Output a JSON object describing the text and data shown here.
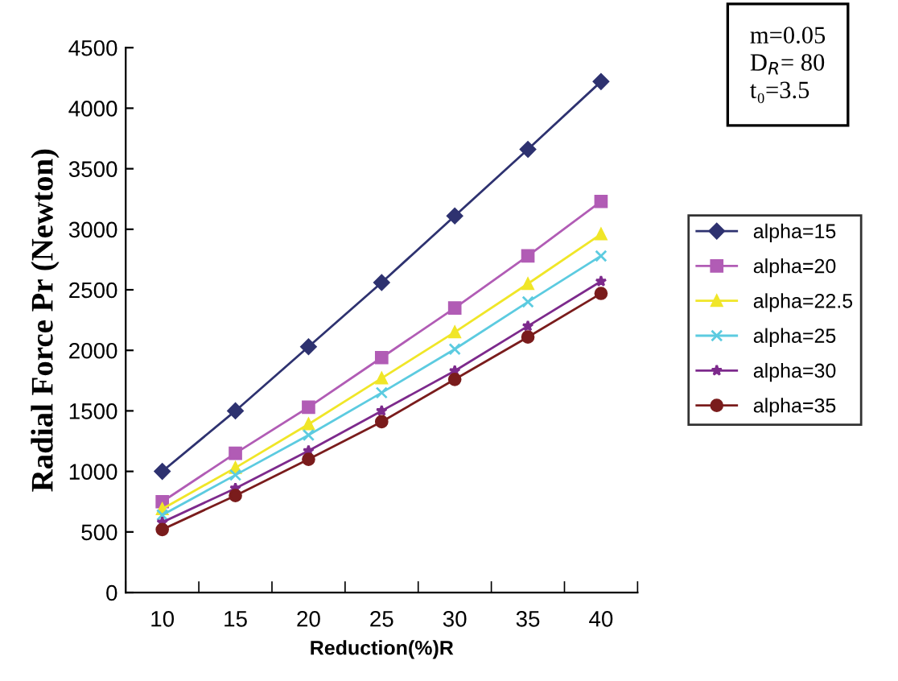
{
  "chart_data": {
    "type": "line",
    "xlabel": "Reduction(%)R",
    "ylabel": "Radial Force Pr (Newton)",
    "categories": [
      "10",
      "15",
      "20",
      "25",
      "30",
      "35",
      "40"
    ],
    "ylim": [
      0,
      4500
    ],
    "yticks": [
      0,
      500,
      1000,
      1500,
      2000,
      2500,
      3000,
      3500,
      4000,
      4500
    ],
    "grid": false,
    "legend": "right",
    "line_style": "solid",
    "annotations": [
      "m=0.05",
      "D$_{R}$= 80",
      "t₀=3.5"
    ],
    "series": [
      {
        "name": "alpha=15",
        "color": "#2e3270",
        "marker": "diamond",
        "values": [
          1000,
          1500,
          2030,
          2560,
          3110,
          3660,
          4220
        ]
      },
      {
        "name": "alpha=20",
        "color": "#b15cb5",
        "marker": "square",
        "values": [
          750,
          1150,
          1530,
          1940,
          2350,
          2780,
          3230
        ]
      },
      {
        "name": "alpha=22.5",
        "color": "#f0e628",
        "marker": "triangle",
        "values": [
          690,
          1030,
          1390,
          1770,
          2150,
          2550,
          2960
        ]
      },
      {
        "name": "alpha=25",
        "color": "#5ccbe0",
        "marker": "cross",
        "values": [
          640,
          970,
          1300,
          1650,
          2010,
          2400,
          2780
        ]
      },
      {
        "name": "alpha=30",
        "color": "#7d2a8c",
        "marker": "star",
        "values": [
          580,
          860,
          1170,
          1500,
          1830,
          2200,
          2570
        ]
      },
      {
        "name": "alpha=35",
        "color": "#7a1c1c",
        "marker": "circle",
        "values": [
          520,
          800,
          1100,
          1410,
          1760,
          2110,
          2470
        ]
      }
    ]
  }
}
